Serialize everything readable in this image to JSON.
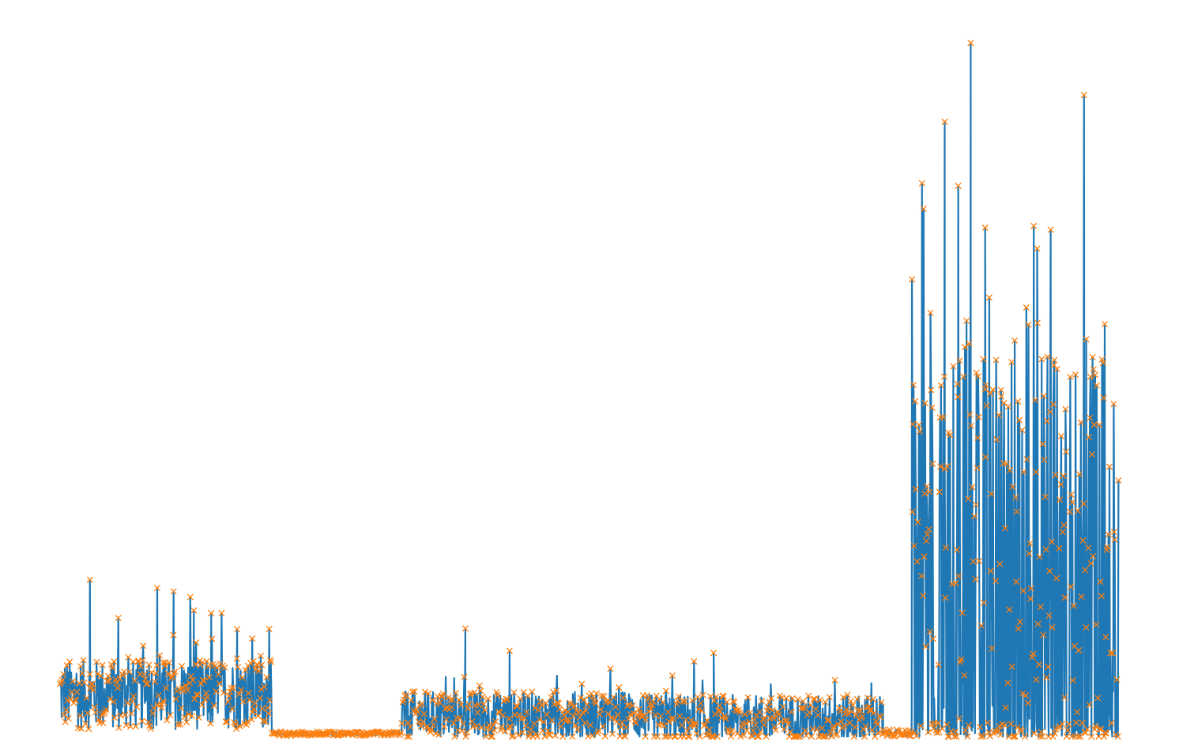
{
  "chart_data": {
    "type": "line",
    "title": "",
    "xlabel": "",
    "ylabel": "",
    "grid": false,
    "legend": "none",
    "axes_visible": false,
    "xlim": [
      0,
      1000
    ],
    "ylim": [
      0,
      100
    ],
    "series": [
      {
        "color": "#1f77b4",
        "style": "line",
        "segments": [
          {
            "x0": 0,
            "x1": 220,
            "base": 6,
            "spread": 5,
            "peak_prob": 0.12,
            "peak_max": 15
          },
          {
            "x0": 220,
            "x1": 355,
            "base": 0.4,
            "spread": 0.3,
            "peak_prob": 0,
            "peak_max": 0
          },
          {
            "x0": 355,
            "x1": 608,
            "base": 3,
            "spread": 3.5,
            "peak_prob": 0.1,
            "peak_max": 7
          },
          {
            "x0": 608,
            "x1": 855,
            "base": 2.5,
            "spread": 3.5,
            "peak_prob": 0.1,
            "peak_max": 8
          },
          {
            "x0": 855,
            "x1": 885,
            "base": 0.5,
            "spread": 0.5,
            "peak_prob": 0,
            "peak_max": 0
          },
          {
            "x0": 885,
            "x1": 1000,
            "base": 22,
            "spread": 35,
            "peak_prob": 0.35,
            "peak_max": 65
          }
        ],
        "peaks": [
          {
            "x": 31,
            "y": 22.5
          },
          {
            "x": 101,
            "y": 21.3
          },
          {
            "x": 118,
            "y": 20.8
          },
          {
            "x": 139,
            "y": 18.1
          },
          {
            "x": 157,
            "y": 17.7
          },
          {
            "x": 184,
            "y": 15.4
          },
          {
            "x": 421,
            "y": 15.5
          },
          {
            "x": 467,
            "y": 12.3
          },
          {
            "x": 679,
            "y": 12.0
          },
          {
            "x": 919,
            "y": 88.2
          },
          {
            "x": 946,
            "y": 99.5
          },
          {
            "x": 933,
            "y": 79.0
          },
          {
            "x": 961,
            "y": 73.0
          },
          {
            "x": 1015,
            "y": 70.0
          },
          {
            "x": 1066,
            "y": 57.0
          }
        ]
      },
      {
        "color": "#ff7f0e",
        "style": "x-markers",
        "follows_series": 0
      }
    ]
  }
}
